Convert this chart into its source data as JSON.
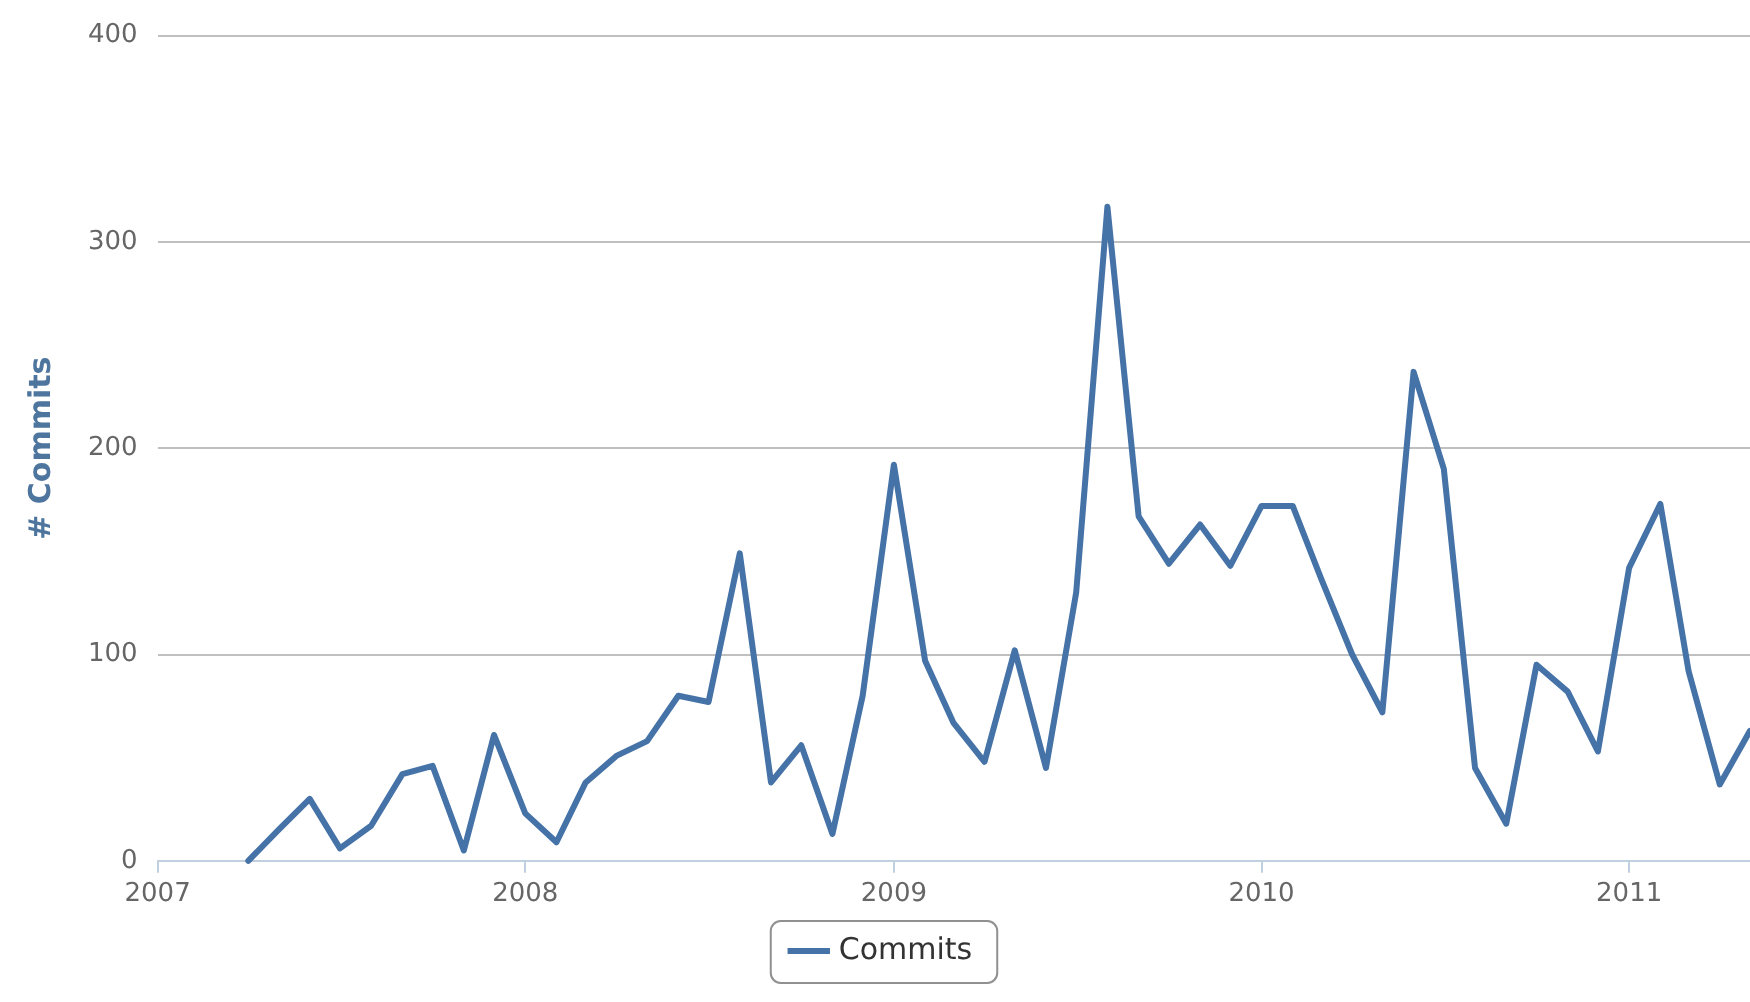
{
  "chart_data": {
    "type": "line",
    "ylabel": "# Commits",
    "x": [
      "2007-04",
      "2007-05",
      "2007-06",
      "2007-07",
      "2007-08",
      "2007-09",
      "2007-10",
      "2007-11",
      "2007-12",
      "2008-01",
      "2008-02",
      "2008-03",
      "2008-04",
      "2008-05",
      "2008-06",
      "2008-07",
      "2008-08",
      "2008-09",
      "2008-10",
      "2008-11",
      "2008-12",
      "2009-01",
      "2009-02",
      "2009-03",
      "2009-04",
      "2009-05",
      "2009-06",
      "2009-07",
      "2009-08",
      "2009-09",
      "2009-10",
      "2009-11",
      "2009-12",
      "2010-01",
      "2010-02",
      "2010-03",
      "2010-04",
      "2010-05",
      "2010-06",
      "2010-07",
      "2010-08",
      "2010-09",
      "2010-10",
      "2010-11",
      "2010-12",
      "2011-01",
      "2011-02",
      "2011-03",
      "2011-04",
      "2011-05"
    ],
    "series": [
      {
        "name": "Commits",
        "color": "#4572a7",
        "values": [
          0,
          15,
          30,
          6,
          17,
          42,
          46,
          5,
          61,
          23,
          9,
          38,
          51,
          58,
          80,
          77,
          149,
          38,
          56,
          13,
          80,
          192,
          97,
          67,
          48,
          102,
          45,
          130,
          317,
          167,
          144,
          163,
          143,
          172,
          172,
          137,
          100,
          72,
          237,
          190,
          45,
          18,
          95,
          82,
          53,
          142,
          173,
          92,
          37,
          63
        ]
      }
    ],
    "xlim": [
      "2007-01",
      "2011-05"
    ],
    "xticks": [
      "2007",
      "2008",
      "2009",
      "2010",
      "2011"
    ],
    "ylim": [
      0,
      400
    ],
    "yticks": [
      0,
      100,
      200,
      300,
      400
    ],
    "grid": "y",
    "legend": "bottom",
    "marker": "none",
    "line_style": "solid"
  }
}
